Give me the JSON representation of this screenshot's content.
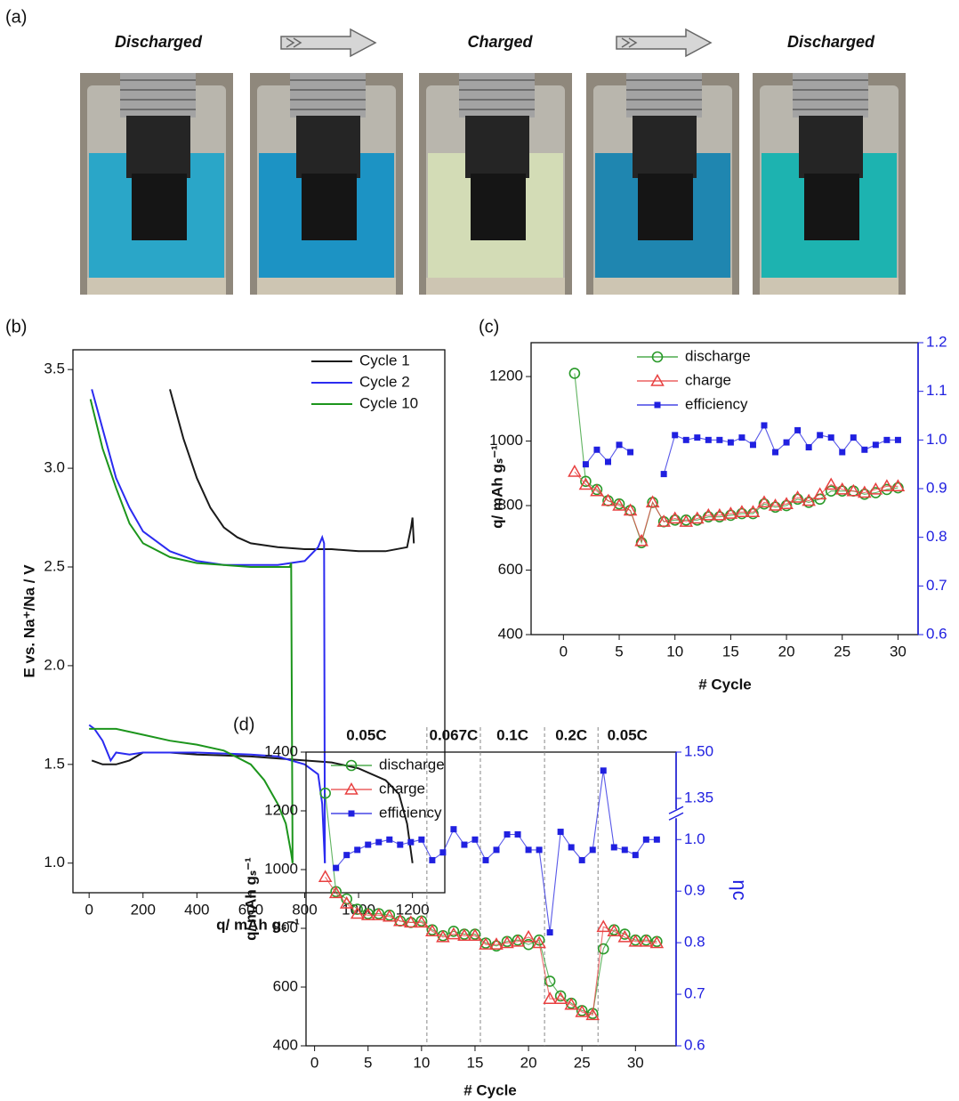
{
  "panel_labels": [
    "(a)",
    "(b)",
    "(c)",
    "(d)"
  ],
  "photos": {
    "captions": [
      "Discharged",
      "Charged",
      "Discharged"
    ]
  },
  "chart_data": [
    {
      "type": "line",
      "x_label": "q/ mAh gₛ⁻¹",
      "y_label": "E vs. Na⁺/Na / V",
      "xlim": [
        -60,
        1320
      ],
      "xticks": [
        0,
        200,
        400,
        600,
        800,
        1000,
        1200
      ],
      "ylim": [
        0.85,
        3.6
      ],
      "yticks": [
        {
          "value": 1,
          "label": "1.0"
        },
        1.5,
        {
          "value": 2,
          "label": "2.0"
        },
        2.5,
        {
          "value": 3,
          "label": "3.0"
        },
        3.5
      ],
      "legend": "upper right",
      "series": [
        {
          "name": "Cycle 1",
          "color": "#1a1a1a",
          "x": [
            300,
            350,
            400,
            450,
            500,
            550,
            600,
            700,
            800,
            900,
            1000,
            1100,
            1180,
            1195,
            1200,
            1205,
            null,
            10,
            50,
            100,
            150,
            200,
            300,
            400,
            600,
            800,
            900,
            1000,
            1100,
            1150,
            1180,
            1200
          ],
          "values": [
            3.4,
            3.15,
            2.95,
            2.8,
            2.7,
            2.65,
            2.62,
            2.6,
            2.59,
            2.59,
            2.58,
            2.58,
            2.6,
            2.7,
            2.75,
            2.62,
            null,
            1.52,
            1.5,
            1.5,
            1.52,
            1.56,
            1.56,
            1.55,
            1.54,
            1.52,
            1.51,
            1.48,
            1.42,
            1.35,
            1.2,
            1.0
          ]
        },
        {
          "name": "Cycle 2",
          "color": "#2b2bf0",
          "x": [
            10,
            50,
            100,
            150,
            200,
            300,
            400,
            500,
            600,
            700,
            800,
            850,
            865,
            872,
            875,
            null,
            0,
            20,
            50,
            80,
            100,
            150,
            200,
            400,
            600,
            700,
            750,
            800,
            850,
            865,
            875
          ],
          "values": [
            3.4,
            3.2,
            2.95,
            2.8,
            2.68,
            2.58,
            2.53,
            2.51,
            2.51,
            2.51,
            2.53,
            2.6,
            2.65,
            2.62,
            1.0,
            null,
            1.7,
            1.68,
            1.62,
            1.52,
            1.56,
            1.55,
            1.56,
            1.56,
            1.55,
            1.54,
            1.52,
            1.5,
            1.45,
            1.3,
            1.0
          ]
        },
        {
          "name": "Cycle 10",
          "color": "#1c951c",
          "x": [
            5,
            50,
            100,
            150,
            200,
            300,
            400,
            500,
            600,
            700,
            745,
            750,
            755,
            null,
            0,
            100,
            200,
            300,
            400,
            500,
            600,
            650,
            700,
            730,
            750,
            755
          ],
          "values": [
            3.35,
            3.1,
            2.9,
            2.72,
            2.62,
            2.55,
            2.52,
            2.51,
            2.5,
            2.5,
            2.5,
            2.52,
            1.0,
            null,
            1.68,
            1.68,
            1.65,
            1.62,
            1.6,
            1.57,
            1.5,
            1.42,
            1.3,
            1.2,
            1.05,
            1.0
          ]
        }
      ]
    },
    {
      "type": "line",
      "x_label": "# Cycle",
      "y_label": "q/ mAh gₛ⁻¹",
      "x": [
        1,
        2,
        3,
        4,
        5,
        6,
        7,
        8,
        9,
        10,
        11,
        12,
        13,
        14,
        15,
        16,
        17,
        18,
        19,
        20,
        21,
        22,
        23,
        24,
        25,
        26,
        27,
        28,
        29,
        30
      ],
      "xlim": [
        -2.9,
        31.8
      ],
      "xticks": [
        0,
        5,
        10,
        15,
        20,
        25,
        30
      ],
      "ylim": [
        400,
        1305
      ],
      "yticks": [
        400,
        600,
        800,
        1000,
        1200
      ],
      "y2lim": [
        0.6,
        1.2
      ],
      "y2ticks": [
        0.6,
        0.7,
        0.8,
        0.9,
        {
          "value": 1,
          "label": "1.0"
        },
        1.1,
        1.2
      ],
      "legend": "upper left",
      "series": [
        {
          "name": "discharge",
          "color": "#2a9a2a",
          "marker": "circle",
          "values": [
            1210,
            875,
            850,
            815,
            805,
            785,
            685,
            810,
            750,
            755,
            755,
            755,
            765,
            765,
            770,
            775,
            775,
            805,
            795,
            800,
            820,
            810,
            820,
            845,
            845,
            845,
            835,
            840,
            850,
            855
          ]
        },
        {
          "name": "charge",
          "color": "#e84040",
          "marker": "triangle",
          "values": [
            905,
            865,
            845,
            815,
            800,
            785,
            690,
            810,
            750,
            760,
            750,
            760,
            770,
            770,
            775,
            780,
            780,
            810,
            800,
            805,
            825,
            815,
            835,
            865,
            850,
            845,
            840,
            850,
            860,
            860
          ]
        },
        {
          "name": "efficiency",
          "color": "#2020e0",
          "marker": "square",
          "axis": "y2",
          "values": [
            null,
            0.95,
            0.98,
            0.955,
            0.99,
            0.975,
            null,
            null,
            0.93,
            1.01,
            1.0,
            1.005,
            1.0,
            1.0,
            0.995,
            1.005,
            0.99,
            1.03,
            0.975,
            0.995,
            1.02,
            0.985,
            1.01,
            1.005,
            0.975,
            1.005,
            0.98,
            0.99,
            1.0,
            1.0
          ]
        }
      ]
    },
    {
      "type": "line",
      "x_label": "# Cycle",
      "y_label": "q/ mAh gₛ⁻¹",
      "y2_label": "ηc",
      "x": [
        1,
        2,
        3,
        4,
        5,
        6,
        7,
        8,
        9,
        10,
        11,
        12,
        13,
        14,
        15,
        16,
        17,
        18,
        19,
        20,
        21,
        22,
        23,
        24,
        25,
        26,
        27,
        28,
        29,
        30,
        31,
        32
      ],
      "xlim": [
        -0.8,
        33.8
      ],
      "xticks": [
        0,
        5,
        10,
        15,
        20,
        25,
        30
      ],
      "ylim": [
        400,
        1400
      ],
      "yticks": [
        400,
        600,
        800,
        1000,
        1200,
        1400
      ],
      "y2lim": [
        0.6,
        1.5
      ],
      "y2break": [
        1.05,
        1.3
      ],
      "y2ticks": [
        0.6,
        0.7,
        0.8,
        0.9,
        {
          "value": 1,
          "label": "1.0"
        },
        1.35,
        {
          "value": 1.5,
          "label": "1.50"
        }
      ],
      "legend": "upper left",
      "dividers": [
        10.5,
        15.5,
        21.5,
        26.5
      ],
      "annotations": [
        "0.05C",
        "0.067C",
        "0.1C",
        "0.2C",
        "0.05C"
      ],
      "series": [
        {
          "name": "discharge",
          "color": "#2a9a2a",
          "marker": "circle",
          "values": [
            1260,
            925,
            900,
            865,
            850,
            850,
            845,
            825,
            820,
            825,
            795,
            775,
            790,
            780,
            780,
            750,
            740,
            755,
            760,
            745,
            760,
            620,
            570,
            545,
            520,
            510,
            730,
            795,
            780,
            760,
            760,
            755
          ]
        },
        {
          "name": "charge",
          "color": "#e84040",
          "marker": "triangle",
          "values": [
            975,
            920,
            885,
            850,
            845,
            845,
            840,
            825,
            820,
            820,
            790,
            770,
            780,
            775,
            775,
            745,
            745,
            750,
            755,
            770,
            750,
            560,
            560,
            540,
            515,
            505,
            805,
            790,
            770,
            755,
            755,
            750
          ]
        },
        {
          "name": "efficiency",
          "color": "#2020e0",
          "marker": "square",
          "axis": "y2",
          "values": [
            null,
            0.945,
            0.97,
            0.98,
            0.99,
            0.995,
            1.0,
            0.99,
            0.995,
            1.0,
            0.96,
            0.975,
            1.02,
            0.99,
            1.0,
            0.96,
            0.98,
            1.01,
            1.01,
            0.98,
            0.98,
            0.82,
            1.015,
            0.985,
            0.96,
            0.98,
            1.44,
            0.985,
            0.98,
            0.97,
            1.0,
            1.0
          ]
        }
      ]
    }
  ]
}
